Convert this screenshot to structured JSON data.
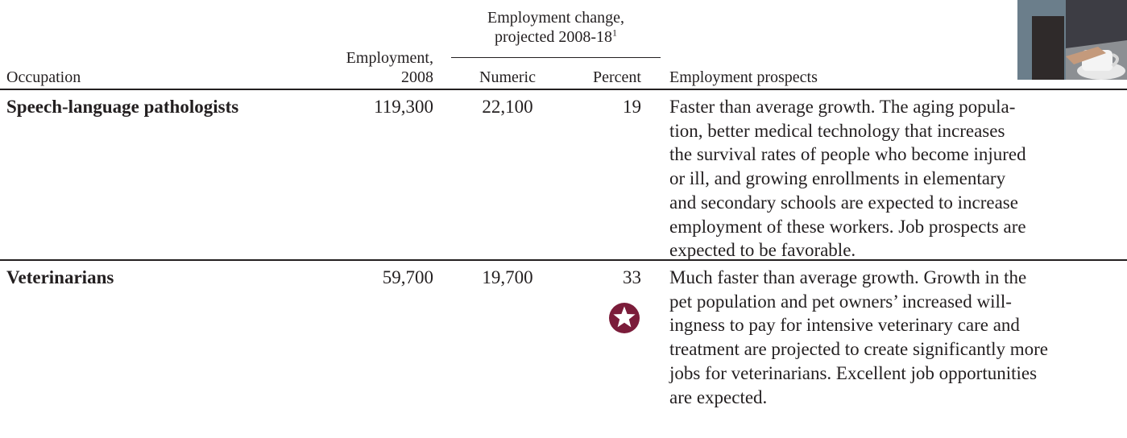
{
  "table": {
    "headers": {
      "occupation": "Occupation",
      "employment_line1": "Employment,",
      "employment_line2": "2008",
      "change_group_line1": "Employment change,",
      "change_group_line2": "projected 2008-18",
      "change_group_footnote": "1",
      "numeric": "Numeric",
      "percent": "Percent",
      "prospects": "Employment prospects"
    },
    "rows": [
      {
        "occupation": "Speech-language pathologists",
        "employment_2008": "119,300",
        "change_numeric": "22,100",
        "change_percent": "19",
        "prospects_lines": [
          "Faster than average growth. The aging popula-",
          "tion, better medical technology that increases",
          "the survival rates of people who become injured",
          "or ill, and growing enrollments in elementary",
          "and secondary schools are expected to increase",
          "employment of these workers. Job prospects are",
          "expected to be favorable."
        ]
      },
      {
        "occupation": "Veterinarians",
        "employment_2008": "59,700",
        "change_numeric": "19,700",
        "change_percent": "33",
        "prospects_lines": [
          "Much faster than average growth. Growth in the",
          "pet population and pet owners’ increased will-",
          "ingness to pay for intensive veterinary care and",
          "treatment are projected to create significantly more",
          "jobs for veterinarians. Excellent job opportunities",
          "are expected."
        ]
      }
    ]
  },
  "icons": {
    "star_badge": "star-badge-icon",
    "photo": "office-photo-fragment"
  },
  "colors": {
    "text": "#231f20",
    "star_badge": "#7b1c3a"
  }
}
